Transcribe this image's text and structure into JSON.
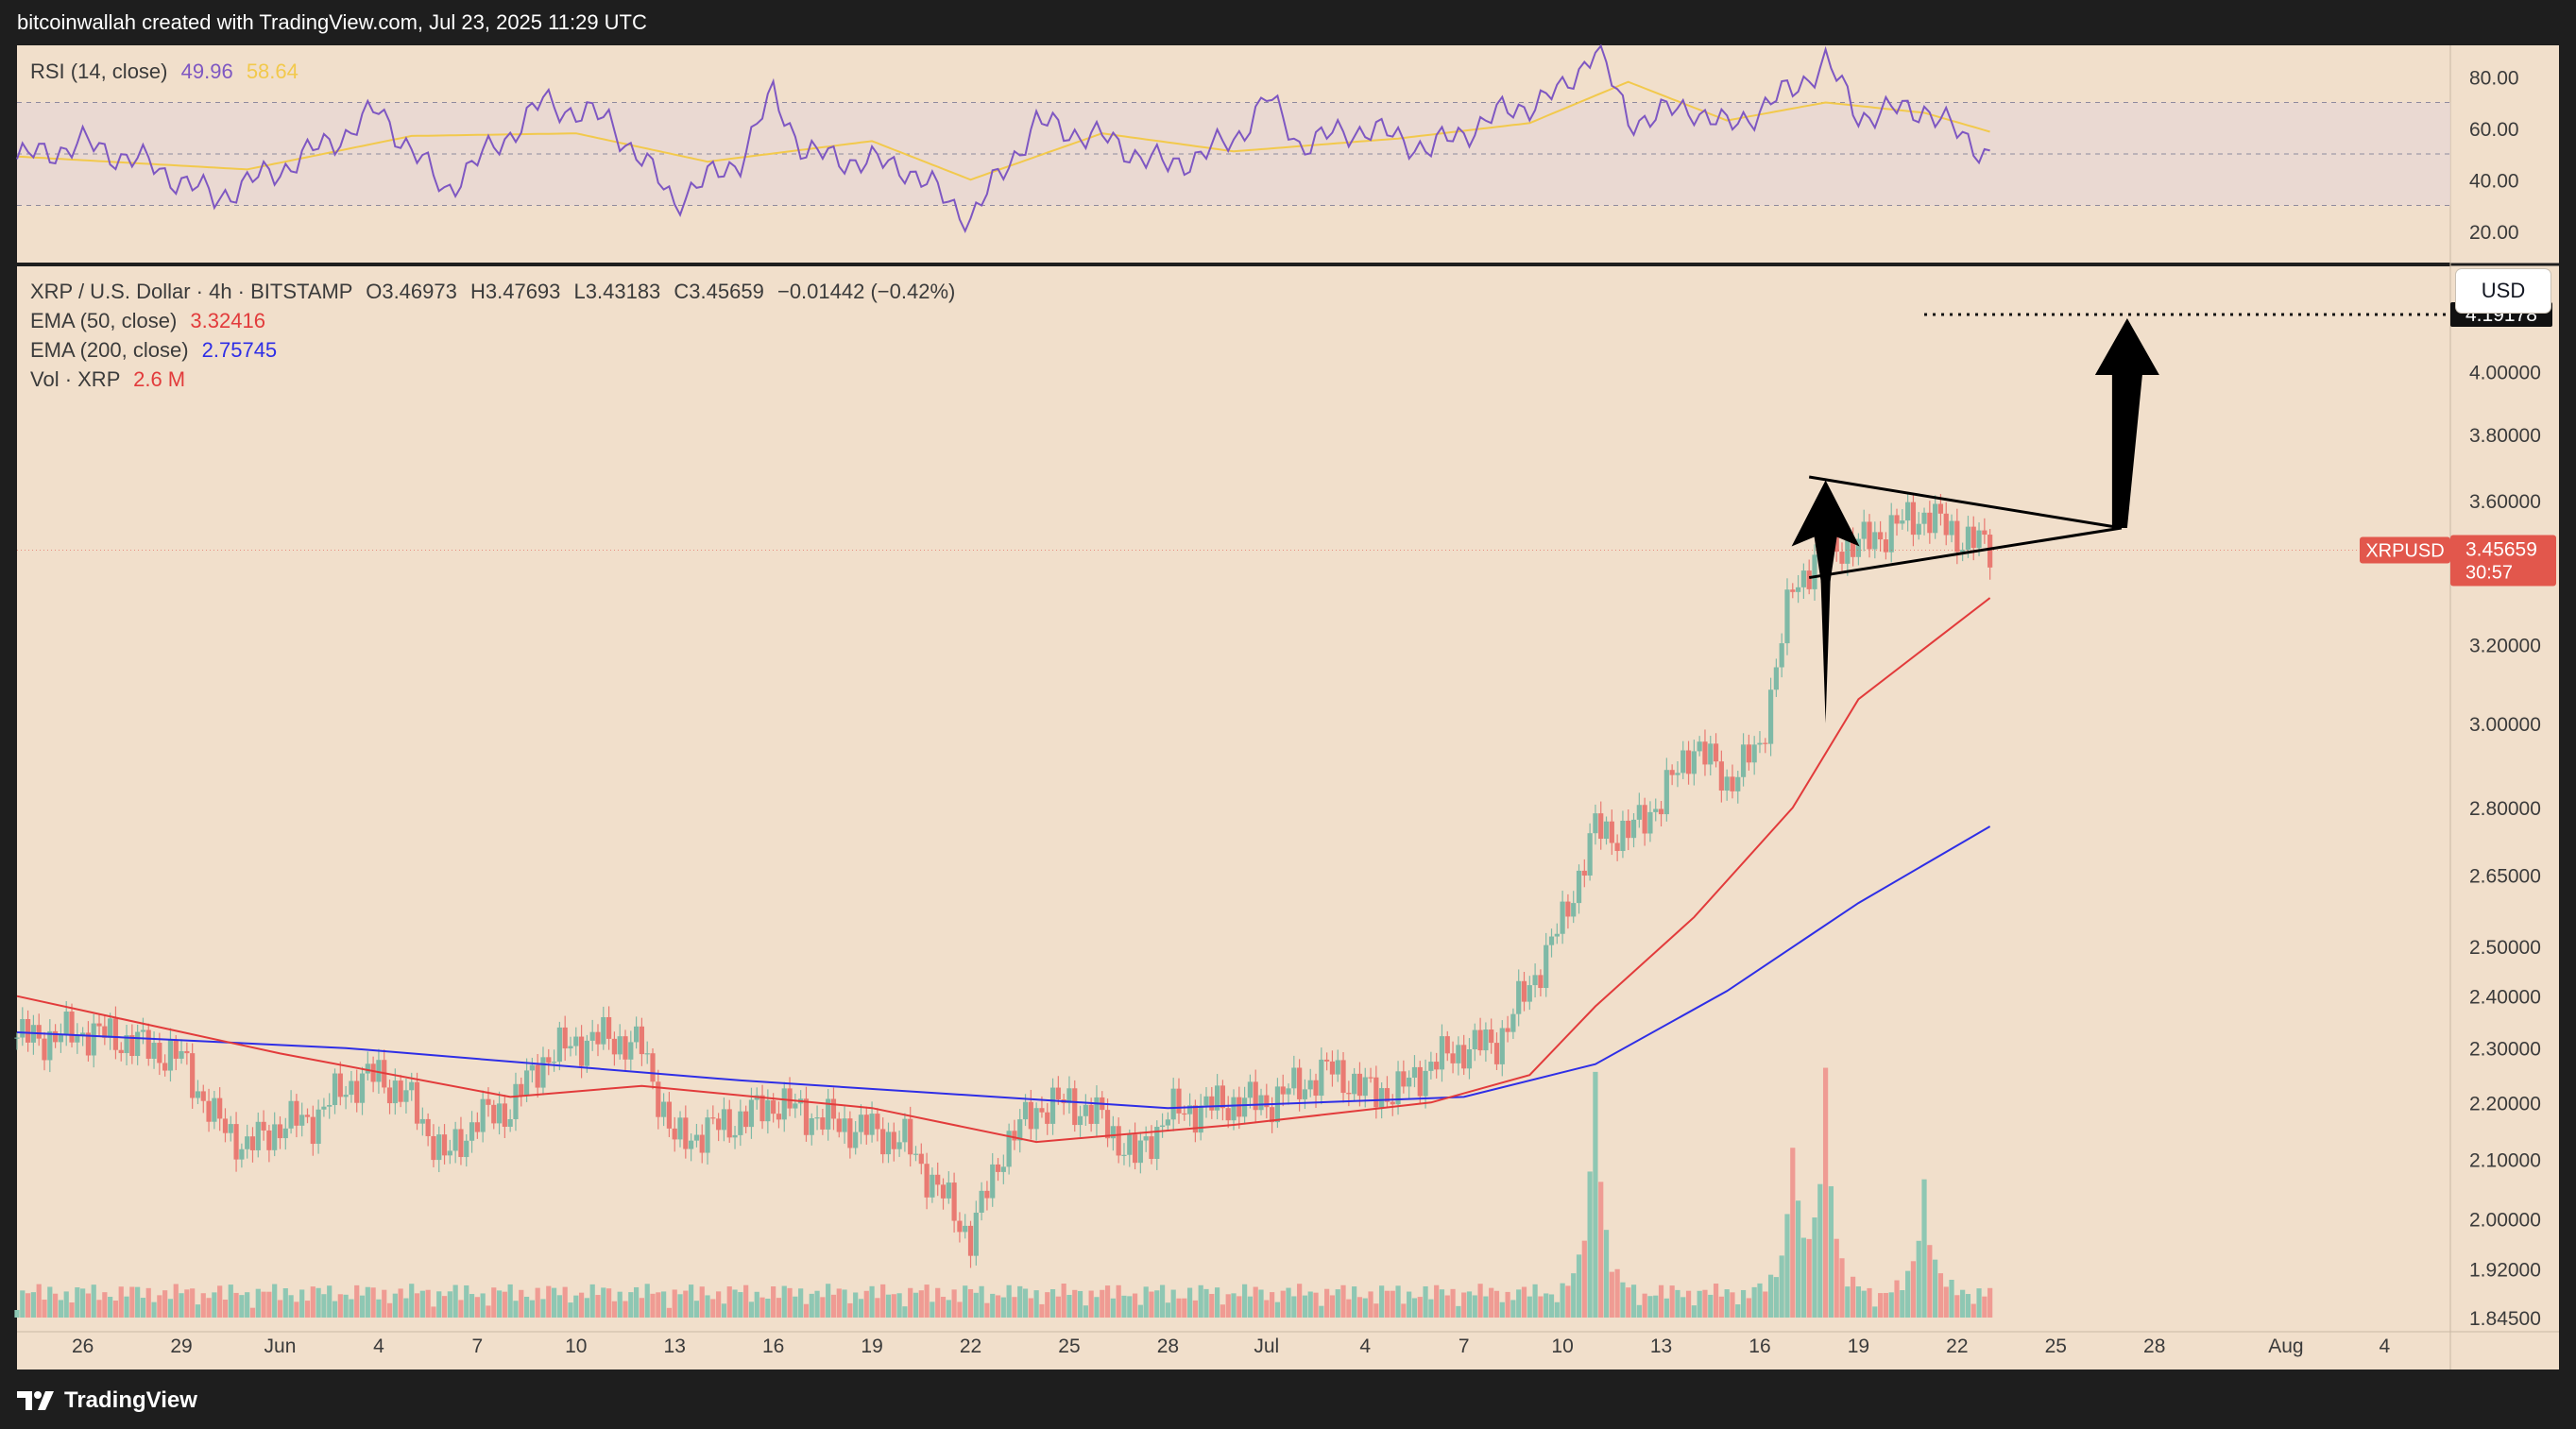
{
  "header": {
    "attribution": "bitcoinwallah created with TradingView.com, Jul 23, 2025 11:29 UTC"
  },
  "footer": {
    "brand": "TradingView",
    "logo_icon": "tradingview-logo-icon"
  },
  "colors": {
    "pane_bg": "#f1dfcb",
    "up": "#7fb9a6",
    "down": "#e97a72",
    "up_volume": "#8ec7b3",
    "down_volume": "#ef9b93",
    "ema50": "#e23b3b",
    "ema200": "#2e2ee6",
    "rsi": "#7e57c2",
    "rsi_ma": "#f2c94c",
    "rsi_band": "#e7d6d4",
    "price_label": "#e2574c"
  },
  "rsi_legend": {
    "label": "RSI (14, close)",
    "value1": "49.96",
    "value2": "58.64"
  },
  "main_legend": {
    "symbol": "XRP / U.S. Dollar · 4h · BITSTAMP",
    "o": "O3.46973",
    "h": "H3.47693",
    "l": "L3.43183",
    "c": "C3.45659",
    "change": "−0.01442 (−0.42%)",
    "ema50_label": "EMA (50, close)",
    "ema50_value": "3.32416",
    "ema200_label": "EMA (200, close)",
    "ema200_value": "2.75745",
    "vol_label": "Vol · XRP",
    "vol_value": "2.6 M"
  },
  "currency_button": "USD",
  "chart_data": {
    "type": "candlestick",
    "symbol": "XRPUSD",
    "timeframe": "4h",
    "x_ticks": [
      "26",
      "29",
      "Jun",
      "4",
      "7",
      "10",
      "13",
      "16",
      "19",
      "22",
      "25",
      "28",
      "Jul",
      "4",
      "7",
      "10",
      "13",
      "16",
      "19",
      "22",
      "25",
      "28",
      "Aug",
      "4"
    ],
    "x_tick_dates": [
      "2025-05-26",
      "2025-05-29",
      "2025-06-01",
      "2025-06-04",
      "2025-06-07",
      "2025-06-10",
      "2025-06-13",
      "2025-06-16",
      "2025-06-19",
      "2025-06-22",
      "2025-06-25",
      "2025-06-28",
      "2025-07-01",
      "2025-07-04",
      "2025-07-07",
      "2025-07-10",
      "2025-07-13",
      "2025-07-16",
      "2025-07-19",
      "2025-07-22",
      "2025-07-25",
      "2025-07-28",
      "2025-08-01",
      "2025-08-04"
    ],
    "y_scale": "log",
    "y_ticks": [
      "4.00000",
      "3.80000",
      "3.60000",
      "3.20000",
      "3.00000",
      "2.80000",
      "2.65000",
      "2.50000",
      "2.40000",
      "2.30000",
      "2.20000",
      "2.10000",
      "2.00000",
      "1.92000",
      "1.84500"
    ],
    "ylim": [
      1.845,
      4.3
    ],
    "last_price": {
      "symbol": "XRPUSD",
      "value": "3.45659",
      "countdown": "30:57"
    },
    "target_label": "4.19178",
    "price_path": [
      [
        "2025-05-25",
        2.32
      ],
      [
        "2025-05-26",
        2.33
      ],
      [
        "2025-05-27",
        2.32
      ],
      [
        "2025-05-28",
        2.3
      ],
      [
        "2025-05-29",
        2.28
      ],
      [
        "2025-05-30",
        2.17
      ],
      [
        "2025-05-31",
        2.12
      ],
      [
        "2025-06-01",
        2.16
      ],
      [
        "2025-06-02",
        2.17
      ],
      [
        "2025-06-03",
        2.23
      ],
      [
        "2025-06-04",
        2.25
      ],
      [
        "2025-06-05",
        2.2
      ],
      [
        "2025-06-06",
        2.1
      ],
      [
        "2025-06-07",
        2.17
      ],
      [
        "2025-06-08",
        2.19
      ],
      [
        "2025-06-09",
        2.28
      ],
      [
        "2025-06-10",
        2.31
      ],
      [
        "2025-06-11",
        2.32
      ],
      [
        "2025-06-12",
        2.3
      ],
      [
        "2025-06-13",
        2.13
      ],
      [
        "2025-06-14",
        2.15
      ],
      [
        "2025-06-15",
        2.17
      ],
      [
        "2025-06-16",
        2.2
      ],
      [
        "2025-06-17",
        2.18
      ],
      [
        "2025-06-18",
        2.16
      ],
      [
        "2025-06-19",
        2.15
      ],
      [
        "2025-06-20",
        2.13
      ],
      [
        "2025-06-21",
        2.05
      ],
      [
        "2025-06-22",
        1.97
      ],
      [
        "2025-06-23",
        2.12
      ],
      [
        "2025-06-24",
        2.19
      ],
      [
        "2025-06-25",
        2.2
      ],
      [
        "2025-06-26",
        2.17
      ],
      [
        "2025-06-27",
        2.1
      ],
      [
        "2025-06-28",
        2.18
      ],
      [
        "2025-06-29",
        2.19
      ],
      [
        "2025-06-30",
        2.2
      ],
      [
        "2025-07-01",
        2.2
      ],
      [
        "2025-07-02",
        2.23
      ],
      [
        "2025-07-03",
        2.26
      ],
      [
        "2025-07-04",
        2.22
      ],
      [
        "2025-07-05",
        2.22
      ],
      [
        "2025-07-06",
        2.27
      ],
      [
        "2025-07-07",
        2.3
      ],
      [
        "2025-07-08",
        2.31
      ],
      [
        "2025-07-09",
        2.42
      ],
      [
        "2025-07-10",
        2.55
      ],
      [
        "2025-07-11",
        2.75
      ],
      [
        "2025-07-12",
        2.74
      ],
      [
        "2025-07-13",
        2.82
      ],
      [
        "2025-07-14",
        2.95
      ],
      [
        "2025-07-15",
        2.86
      ],
      [
        "2025-07-16",
        2.94
      ],
      [
        "2025-07-17",
        3.35
      ],
      [
        "2025-07-18",
        3.47
      ],
      [
        "2025-07-19",
        3.47
      ],
      [
        "2025-07-20",
        3.52
      ],
      [
        "2025-07-21",
        3.56
      ],
      [
        "2025-07-22",
        3.5
      ],
      [
        "2025-07-23",
        3.46
      ]
    ],
    "ema50": [
      [
        "2025-05-24",
        2.4
      ],
      [
        "2025-06-01",
        2.29
      ],
      [
        "2025-06-08",
        2.21
      ],
      [
        "2025-06-12",
        2.23
      ],
      [
        "2025-06-19",
        2.19
      ],
      [
        "2025-06-24",
        2.13
      ],
      [
        "2025-06-30",
        2.16
      ],
      [
        "2025-07-06",
        2.2
      ],
      [
        "2025-07-09",
        2.25
      ],
      [
        "2025-07-11",
        2.38
      ],
      [
        "2025-07-14",
        2.56
      ],
      [
        "2025-07-17",
        2.8
      ],
      [
        "2025-07-19",
        3.06
      ],
      [
        "2025-07-23",
        3.32416
      ]
    ],
    "ema200": [
      [
        "2025-05-24",
        2.33
      ],
      [
        "2025-06-03",
        2.3
      ],
      [
        "2025-06-15",
        2.24
      ],
      [
        "2025-06-28",
        2.19
      ],
      [
        "2025-07-07",
        2.21
      ],
      [
        "2025-07-11",
        2.27
      ],
      [
        "2025-07-15",
        2.41
      ],
      [
        "2025-07-19",
        2.59
      ],
      [
        "2025-07-23",
        2.75745
      ]
    ],
    "rsi_pane": {
      "y_ticks": [
        "80.00",
        "60.00",
        "40.00",
        "20.00"
      ],
      "ylim": [
        10,
        90
      ],
      "bands": [
        70,
        50,
        30
      ],
      "rsi": [
        [
          "2025-05-24",
          48
        ],
        [
          "2025-05-26",
          54
        ],
        [
          "2025-05-28",
          46
        ],
        [
          "2025-05-30",
          33
        ],
        [
          "2025-06-01",
          44
        ],
        [
          "2025-06-03",
          58
        ],
        [
          "2025-06-04",
          67
        ],
        [
          "2025-06-06",
          36
        ],
        [
          "2025-06-08",
          58
        ],
        [
          "2025-06-09",
          70
        ],
        [
          "2025-06-11",
          63
        ],
        [
          "2025-06-13",
          32
        ],
        [
          "2025-06-15",
          48
        ],
        [
          "2025-06-16",
          73
        ],
        [
          "2025-06-17",
          50
        ],
        [
          "2025-06-20",
          45
        ],
        [
          "2025-06-22",
          25
        ],
        [
          "2025-06-24",
          62
        ],
        [
          "2025-06-26",
          56
        ],
        [
          "2025-06-28",
          45
        ],
        [
          "2025-06-30",
          55
        ],
        [
          "2025-07-01",
          72
        ],
        [
          "2025-07-02",
          54
        ],
        [
          "2025-07-04",
          60
        ],
        [
          "2025-07-06",
          52
        ],
        [
          "2025-07-08",
          65
        ],
        [
          "2025-07-10",
          74
        ],
        [
          "2025-07-11",
          92
        ],
        [
          "2025-07-12",
          63
        ],
        [
          "2025-07-14",
          68
        ],
        [
          "2025-07-15",
          60
        ],
        [
          "2025-07-17",
          75
        ],
        [
          "2025-07-18",
          86
        ],
        [
          "2025-07-19",
          65
        ],
        [
          "2025-07-21",
          68
        ],
        [
          "2025-07-22",
          58
        ],
        [
          "2025-07-23",
          49.96
        ]
      ],
      "rsi_ma": [
        [
          "2025-05-24",
          49
        ],
        [
          "2025-05-31",
          44
        ],
        [
          "2025-06-05",
          57
        ],
        [
          "2025-06-10",
          58
        ],
        [
          "2025-06-14",
          47
        ],
        [
          "2025-06-19",
          55
        ],
        [
          "2025-06-22",
          40
        ],
        [
          "2025-06-26",
          58
        ],
        [
          "2025-06-30",
          51
        ],
        [
          "2025-07-05",
          56
        ],
        [
          "2025-07-09",
          62
        ],
        [
          "2025-07-12",
          78
        ],
        [
          "2025-07-15",
          63
        ],
        [
          "2025-07-18",
          70
        ],
        [
          "2025-07-21",
          66
        ],
        [
          "2025-07-23",
          58.64
        ]
      ]
    },
    "volume_peaks_million": [
      [
        "2025-07-11",
        30
      ],
      [
        "2025-07-18",
        29
      ],
      [
        "2025-07-17",
        20
      ],
      [
        "2025-07-21",
        15
      ]
    ],
    "annotations": [
      "triangle pattern around 3.40–3.66",
      "up arrow to 4.19178"
    ]
  }
}
